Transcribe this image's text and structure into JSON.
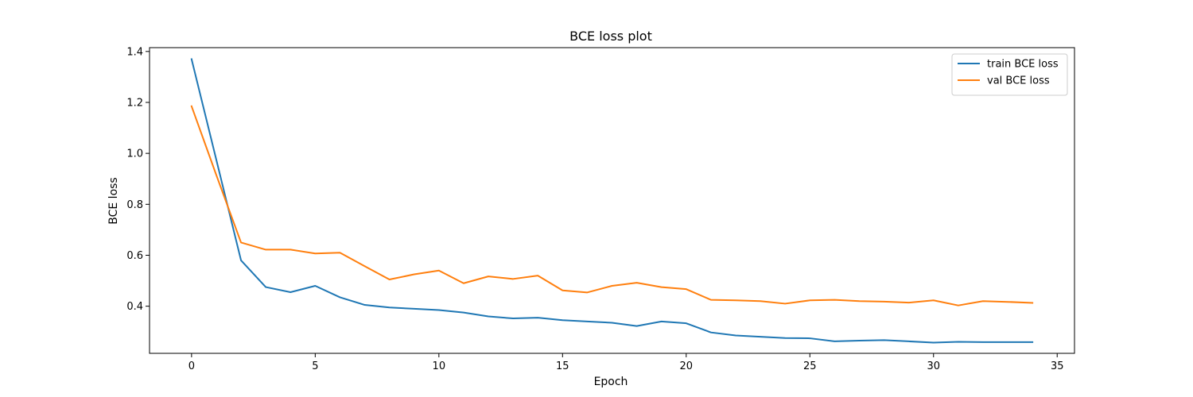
{
  "chart_data": {
    "type": "line",
    "title": "BCE loss plot",
    "xlabel": "Epoch",
    "ylabel": "BCE loss",
    "xlim": [
      -1.7,
      35.7
    ],
    "ylim": [
      0.215,
      1.415
    ],
    "xticks": [
      "0",
      "5",
      "10",
      "15",
      "20",
      "25",
      "30",
      "35"
    ],
    "yticks": [
      "0.4",
      "0.6",
      "0.8",
      "1.0",
      "1.2",
      "1.4"
    ],
    "grid": false,
    "legend_position": "top-right",
    "x": [
      0,
      1,
      2,
      3,
      4,
      5,
      6,
      7,
      8,
      9,
      10,
      11,
      12,
      13,
      14,
      15,
      16,
      17,
      18,
      19,
      20,
      21,
      22,
      23,
      24,
      25,
      26,
      27,
      28,
      29,
      30,
      31,
      32,
      33,
      34
    ],
    "series": [
      {
        "name": "train BCE loss",
        "color": "#1f77b4",
        "values": [
          1.37,
          0.975,
          0.58,
          0.475,
          0.455,
          0.48,
          0.435,
          0.405,
          0.395,
          0.39,
          0.385,
          0.375,
          0.36,
          0.352,
          0.355,
          0.345,
          0.34,
          0.335,
          0.322,
          0.34,
          0.333,
          0.297,
          0.285,
          0.28,
          0.275,
          0.274,
          0.262,
          0.265,
          0.267,
          0.262,
          0.257,
          0.26,
          0.259,
          0.259,
          0.259
        ]
      },
      {
        "name": "val BCE loss",
        "color": "#ff7f0e",
        "values": [
          1.185,
          0.915,
          0.65,
          0.622,
          0.622,
          0.607,
          0.61,
          0.557,
          0.505,
          0.525,
          0.54,
          0.49,
          0.517,
          0.507,
          0.52,
          0.462,
          0.454,
          0.48,
          0.492,
          0.475,
          0.467,
          0.425,
          0.423,
          0.42,
          0.41,
          0.423,
          0.425,
          0.42,
          0.418,
          0.414,
          0.423,
          0.403,
          0.42,
          0.417,
          0.413
        ]
      }
    ]
  }
}
